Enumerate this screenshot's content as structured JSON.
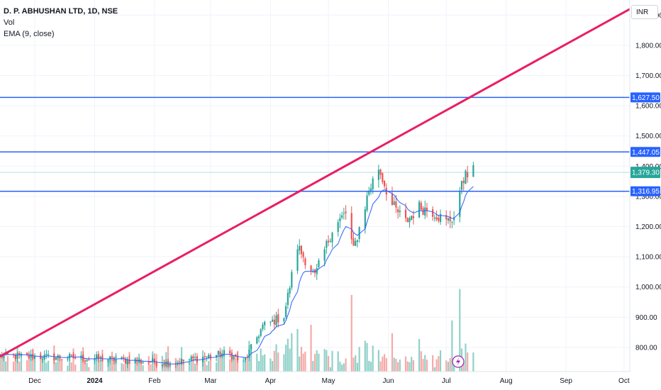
{
  "legend": {
    "symbol": "D. P. ABHUSHAN LTD, 1D, NSE",
    "volume": "Vol",
    "ema": "EMA (9, close)"
  },
  "currency": "INR",
  "colors": {
    "up": "#26a69a",
    "down": "#ef5350",
    "up_vol": "#8fd1c9",
    "down_vol": "#f7a9a7",
    "ema": "#2962ff",
    "hline": "#2962ff",
    "trendline": "#e91e63",
    "last_price": "#26a69a"
  },
  "chart_data": {
    "type": "candlestick",
    "y_axis": {
      "min": 720,
      "max": 1950,
      "ticks": [
        "1,900.00",
        "1,800.00",
        "1,700.00",
        "1,600.00",
        "1,500.00",
        "1,400.00",
        "1,300.00",
        "1,200.00",
        "1,100.00",
        "1,000.00",
        "900.00",
        "800.00"
      ],
      "tick_values": [
        1900,
        1800,
        1700,
        1600,
        1500,
        1400,
        1300,
        1200,
        1100,
        1000,
        900,
        800
      ]
    },
    "x_axis": {
      "labels": [
        "Dec",
        "2024",
        "Feb",
        "Mar",
        "Apr",
        "May",
        "Jun",
        "Jul",
        "Aug",
        "Sep",
        "Oct"
      ],
      "label_dates": [
        "2023-12-01",
        "2024-01-01",
        "2024-02-01",
        "2024-03-01",
        "2024-04-01",
        "2024-05-01",
        "2024-06-01",
        "2024-07-01",
        "2024-08-01",
        "2024-09-01",
        "2024-10-01"
      ],
      "range": [
        "2023-11-13",
        "2024-10-04"
      ]
    },
    "horizontal_levels": [
      {
        "label": "1,627.50",
        "value": 1627.5
      },
      {
        "label": "1,447.05",
        "value": 1447.05
      },
      {
        "label": "1,316.95",
        "value": 1316.95
      }
    ],
    "last_price": {
      "label": "1,379.30",
      "value": 1379.3
    },
    "trendline": {
      "start": {
        "date": "2023-11-13",
        "price": 770
      },
      "end": {
        "date": "2024-10-04",
        "price": 1920
      }
    },
    "price_waypoints": [
      {
        "date": "2023-11-13",
        "price": 772
      },
      {
        "date": "2023-12-20",
        "price": 766
      },
      {
        "date": "2024-01-15",
        "price": 758
      },
      {
        "date": "2024-02-10",
        "price": 748
      },
      {
        "date": "2024-02-28",
        "price": 770
      },
      {
        "date": "2024-03-10",
        "price": 782
      },
      {
        "date": "2024-03-18",
        "price": 748
      },
      {
        "date": "2024-03-28",
        "price": 870
      },
      {
        "date": "2024-04-08",
        "price": 905
      },
      {
        "date": "2024-04-15",
        "price": 1135
      },
      {
        "date": "2024-04-24",
        "price": 1035
      },
      {
        "date": "2024-05-03",
        "price": 1190
      },
      {
        "date": "2024-05-10",
        "price": 1245
      },
      {
        "date": "2024-05-14",
        "price": 1120
      },
      {
        "date": "2024-05-22",
        "price": 1320
      },
      {
        "date": "2024-05-27",
        "price": 1395
      },
      {
        "date": "2024-06-03",
        "price": 1270
      },
      {
        "date": "2024-06-10",
        "price": 1215
      },
      {
        "date": "2024-06-17",
        "price": 1265
      },
      {
        "date": "2024-06-24",
        "price": 1250
      },
      {
        "date": "2024-07-01",
        "price": 1215
      },
      {
        "date": "2024-07-07",
        "price": 1240
      },
      {
        "date": "2024-07-09",
        "price": 1360
      },
      {
        "date": "2024-07-15",
        "price": 1380
      }
    ],
    "volume_spikes": [
      {
        "date": "2024-04-22",
        "height": 0.55
      },
      {
        "date": "2024-05-13",
        "height": 0.9
      },
      {
        "date": "2024-07-08",
        "height": 0.97
      },
      {
        "date": "2024-07-04",
        "height": 0.6
      },
      {
        "date": "2024-04-15",
        "height": 0.5
      },
      {
        "date": "2024-06-03",
        "height": 0.45
      }
    ]
  }
}
